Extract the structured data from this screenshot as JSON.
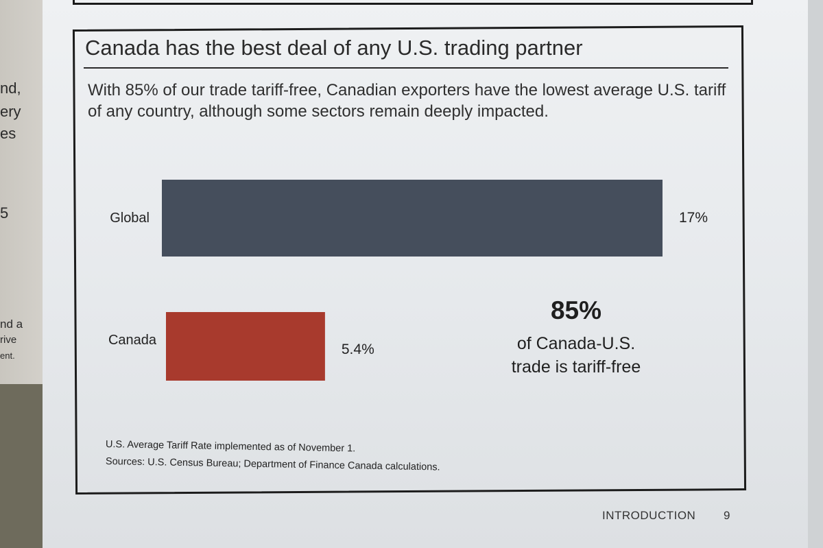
{
  "left_page_fragments": [
    "nd,",
    "ery",
    "es",
    "5",
    "nd a",
    "rive",
    "ent."
  ],
  "title": "Canada has the best deal of any U.S. trading partner",
  "subtitle": "With 85% of our trade tariff-free, Canadian exporters have the lowest average U.S. tariff of any country, although some sectors remain deeply impacted.",
  "chart_data": {
    "type": "bar",
    "orientation": "horizontal",
    "categories": [
      "Global",
      "Canada"
    ],
    "values": [
      17,
      5.4
    ],
    "value_labels": [
      "17%",
      "5.4%"
    ],
    "colors": [
      "#454e5c",
      "#a83a2d"
    ],
    "unit": "%",
    "grid": false
  },
  "callout": {
    "value": "85%",
    "line1": "of Canada-U.S.",
    "line2": "trade is tariff-free"
  },
  "footnote": {
    "line1": "U.S. Average Tariff Rate implemented as of November 1.",
    "line2": "Sources: U.S. Census Bureau; Department of Finance Canada calculations."
  },
  "footer": {
    "section": "INTRODUCTION",
    "page_number": "9"
  }
}
